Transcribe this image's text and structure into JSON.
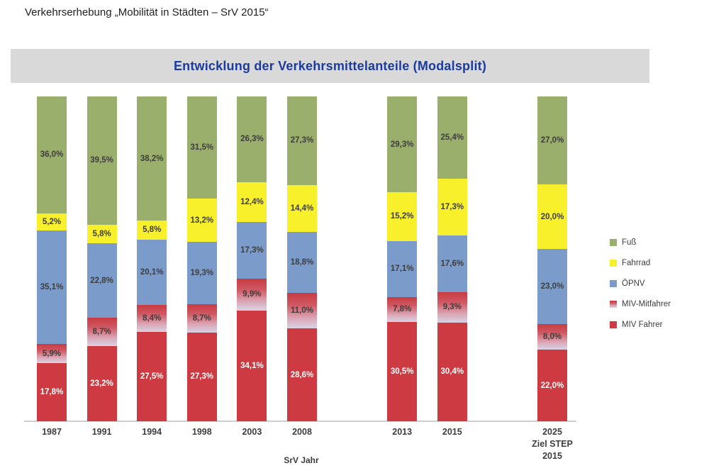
{
  "page": {
    "title": "Verkehrserhebung „Mobilität in Städten – SrV 2015“"
  },
  "chart": {
    "title": "Entwicklung der Verkehrsmittelanteile (Modalsplit)",
    "xlabel": "SrV Jahr"
  },
  "chart_data": {
    "type": "bar",
    "stacked": true,
    "value_unit": "%",
    "decimal_separator": ",",
    "ylim": [
      0,
      100
    ],
    "grid": false,
    "categories": [
      "1987",
      "1991",
      "1994",
      "1998",
      "2003",
      "2008",
      "2013",
      "2015",
      "2025\nZiel STEP\n2015"
    ],
    "series": [
      {
        "name": "MIV Fahrer",
        "color": "#cd3a41",
        "label_color": "#ffffff",
        "values": [
          17.8,
          23.2,
          27.5,
          27.3,
          34.1,
          28.6,
          30.5,
          30.4,
          22.0
        ]
      },
      {
        "name": "MIV-Mitfahrer",
        "color": "#c93a42",
        "gradient_to": "#d8d4e5",
        "label_color": "#3d3d3d",
        "values": [
          5.9,
          8.7,
          8.4,
          8.7,
          9.9,
          11.0,
          7.8,
          9.3,
          8.0
        ]
      },
      {
        "name": "ÖPNV",
        "color": "#7b9ccb",
        "label_color": "#3d3d3d",
        "values": [
          35.1,
          22.8,
          20.1,
          19.3,
          17.3,
          18.8,
          17.1,
          17.6,
          23.0
        ]
      },
      {
        "name": "Fahrrad",
        "color": "#f7f02b",
        "label_color": "#3d3d3d",
        "values": [
          5.2,
          5.8,
          5.8,
          13.2,
          12.4,
          14.4,
          15.2,
          17.3,
          20.0
        ]
      },
      {
        "name": "Fuß",
        "color": "#9baf6d",
        "label_color": "#3d3d3d",
        "values": [
          36.0,
          39.5,
          38.2,
          31.5,
          26.3,
          27.3,
          29.3,
          25.4,
          27.0
        ]
      }
    ],
    "legend": {
      "position": "right",
      "items": [
        "Fuß",
        "Fahrrad",
        "ÖPNV",
        "MIV-Mitfahrer",
        "MIV Fahrer"
      ]
    }
  }
}
